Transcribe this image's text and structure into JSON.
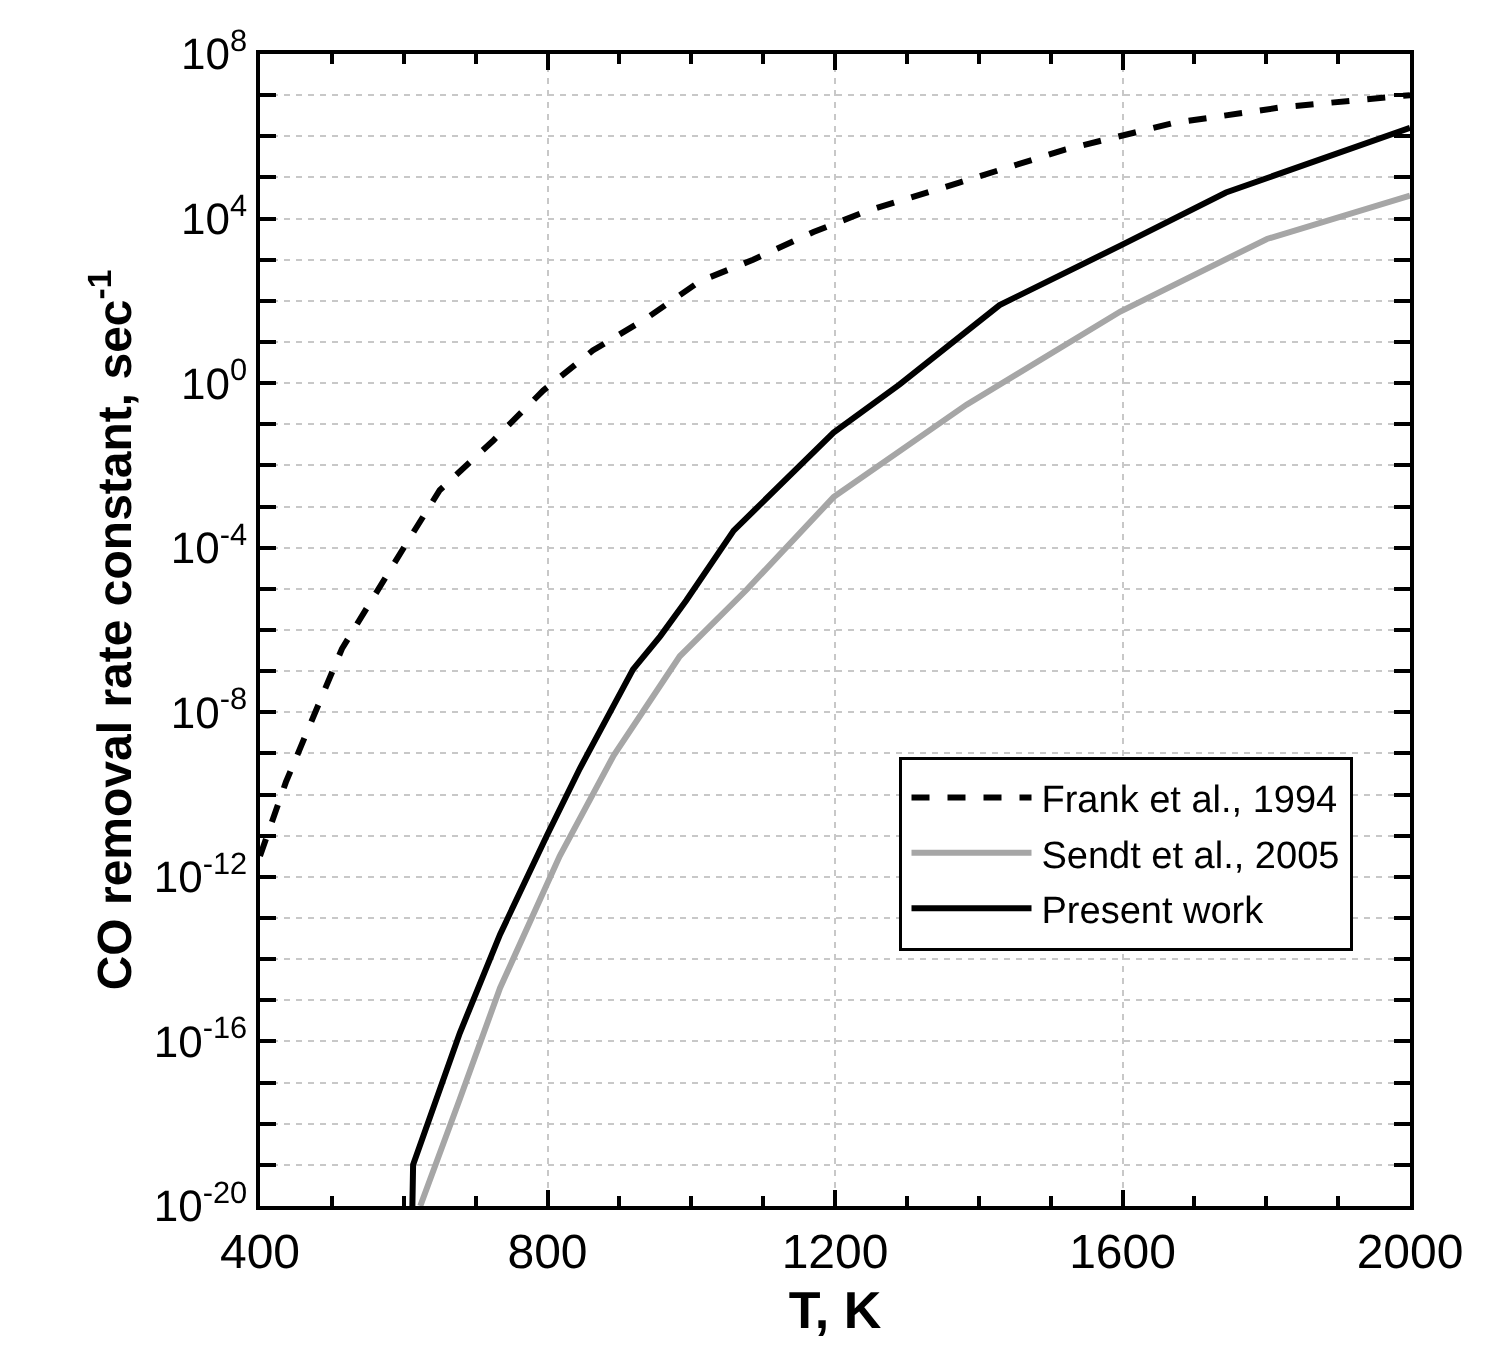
{
  "chart_data": {
    "type": "line",
    "xlabel": "T, K",
    "ylabel": "CO removal rate constant, sec$^{-1}$",
    "log": "y",
    "grid": true,
    "legend": "right",
    "marker": "none",
    "xlim": [
      400,
      2000
    ],
    "xticks": [
      400,
      800,
      1200,
      1600,
      2000
    ],
    "ylim": [
      1e-20,
      100000000.0
    ],
    "yticks": [
      {
        "value": 1e-20,
        "label": "10$^{-20}$"
      },
      {
        "value": 1e-19,
        "label": null
      },
      {
        "value": 1e-18,
        "label": null
      },
      {
        "value": 1e-17,
        "label": null
      },
      {
        "value": 1e-16,
        "label": "10$^{-16}$"
      },
      {
        "value": 1e-15,
        "label": null
      },
      {
        "value": 1e-14,
        "label": null
      },
      {
        "value": 1e-13,
        "label": null
      },
      {
        "value": 1e-12,
        "label": "10$^{-12}$"
      },
      {
        "value": 1e-11,
        "label": null
      },
      {
        "value": 1e-10,
        "label": null
      },
      {
        "value": 1e-09,
        "label": null
      },
      {
        "value": 1e-08,
        "label": "10$^{-8}$"
      },
      {
        "value": 1e-07,
        "label": null
      },
      {
        "value": 1e-06,
        "label": null
      },
      {
        "value": 1e-05,
        "label": null
      },
      {
        "value": 0.0001,
        "label": "10$^{-4}$"
      },
      {
        "value": 0.001,
        "label": null
      },
      {
        "value": 0.01,
        "label": null
      },
      {
        "value": 0.1,
        "label": null
      },
      {
        "value": 1,
        "label": "10$^{0}$"
      },
      {
        "value": 10,
        "label": null
      },
      {
        "value": 100,
        "label": null
      },
      {
        "value": 1000,
        "label": null
      },
      {
        "value": 10000.0,
        "label": "10$^{4}$"
      },
      {
        "value": 100000.0,
        "label": null
      },
      {
        "value": 1000000.0,
        "label": null
      },
      {
        "value": 10000000.0,
        "label": null
      },
      {
        "value": 100000000.0,
        "label": "10$^{8}$"
      }
    ],
    "series": [
      {
        "name": "Frank et al., 1994",
        "color": "#000000",
        "line_style": "dashed",
        "x": [
          400,
          436,
          483,
          514,
          600,
          650,
          725,
          794,
          863,
          937,
          1012,
          1086,
          1170,
          1243,
          1374,
          1521,
          1671,
          1819,
          2000
        ],
        "values": [
          3.2e-12,
          2e-10,
          1.8e-08,
          3.5e-07,
          0.0001,
          0.0025,
          0.041,
          0.66,
          6.2,
          37,
          300,
          1000,
          4700,
          15000,
          76000,
          480000,
          2100000.0,
          5000000.0,
          10000000.0
        ]
      },
      {
        "name": "Sendt et al., 2005",
        "color": "#a6a6a6",
        "line_style": "solid",
        "x": [
          623,
          678,
          734,
          817,
          892,
          984,
          1077,
          1198,
          1383,
          1597,
          1801,
          2000
        ],
        "values": [
          1e-20,
          4e-18,
          2e-15,
          3.2e-12,
          8.9e-10,
          2.3e-07,
          9.5e-06,
          0.0017,
          0.3,
          55,
          3200,
          36000
        ]
      },
      {
        "name": "Present work",
        "color": "#000000",
        "line_style": "solid",
        "x": [
          612,
          613,
          678,
          734,
          799,
          845,
          919,
          957,
          993,
          1059,
          1198,
          1290,
          1429,
          1597,
          1744,
          2000
        ],
        "values": [
          1e-20,
          1e-19,
          1.6e-16,
          4e-14,
          1e-11,
          4.3e-10,
          1.1e-07,
          7.1e-07,
          5.2e-06,
          0.00026,
          0.063,
          0.93,
          79,
          2200,
          43000,
          1600000.0
        ]
      }
    ]
  }
}
